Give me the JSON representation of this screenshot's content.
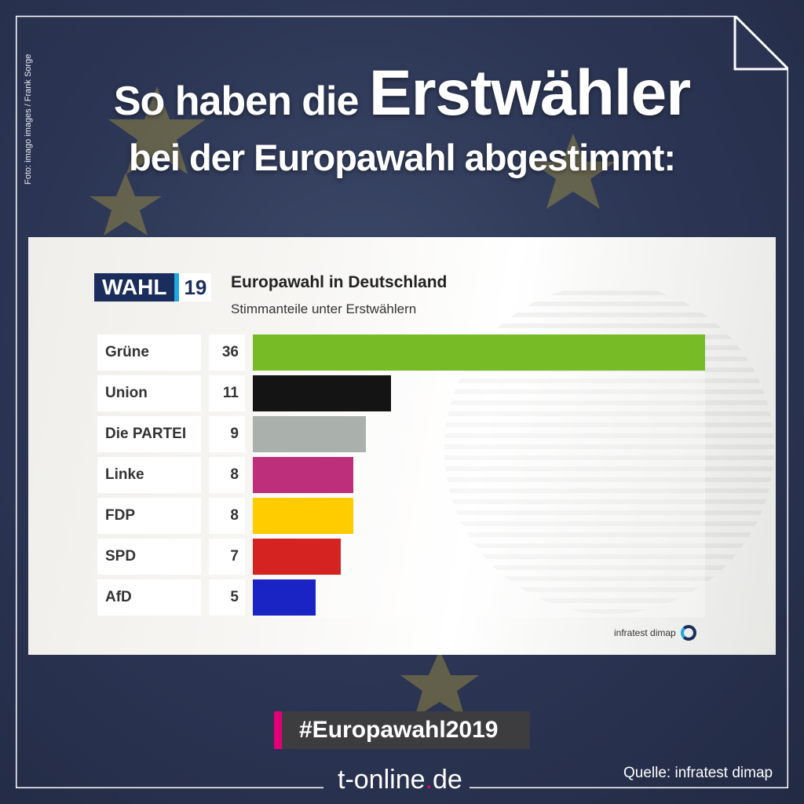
{
  "photo_credit": "Foto: imago images / Frank Sorge",
  "headline": {
    "line1_prefix": "So haben die",
    "line1_big": "Erstwähler",
    "line2": "bei der Europawahl abgestimmt:"
  },
  "logo": {
    "wahl": "WAHL",
    "year": "19"
  },
  "chart_data": {
    "type": "bar",
    "title": "Europawahl in Deutschland",
    "subtitle": "Stimmanteile unter Erstwählern",
    "categories": [
      "Grüne",
      "Union",
      "Die PARTEI",
      "Linke",
      "FDP",
      "SPD",
      "AfD"
    ],
    "values": [
      36,
      11,
      9,
      8,
      8,
      7,
      5
    ],
    "colors": [
      "#77bc26",
      "#141414",
      "#aab1ad",
      "#bd2f7b",
      "#ffcc00",
      "#d52322",
      "#1a24c4"
    ],
    "xlim": [
      0,
      36
    ],
    "orientation": "horizontal",
    "grid": false
  },
  "source_logo": "infratest dimap",
  "hashtag": "#Europawahl2019",
  "brand": {
    "name": "t-online",
    "dot": ".",
    "tld": "de"
  },
  "quelle": "Quelle: infratest dimap",
  "colors": {
    "accent": "#e2007a",
    "navy": "#1a2d5c",
    "cyan": "#1da8e0"
  }
}
